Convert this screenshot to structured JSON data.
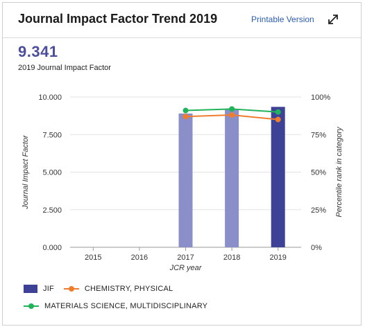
{
  "header": {
    "title": "Journal Impact Factor Trend 2019",
    "printable_label": "Printable Version",
    "expand_icon": "expand-arrows-icon"
  },
  "summary": {
    "value": "9.341",
    "caption": "2019 Journal Impact Factor"
  },
  "colors": {
    "jif_bar_light": "#8b8fc9",
    "jif_bar_dark": "#3d4297",
    "chemistry": "#f07d2d",
    "materials": "#21b35a",
    "grid": "#e3e3e3"
  },
  "legend": {
    "jif": "JIF",
    "chemistry": "CHEMISTRY, PHYSICAL",
    "materials": "MATERIALS SCIENCE, MULTIDISCIPLINARY"
  },
  "chart_data": {
    "type": "bar",
    "xlabel": "JCR year",
    "ylabel": "Journal Impact Factor",
    "y2label": "Percentile rank in category",
    "categories": [
      "2015",
      "2016",
      "2017",
      "2018",
      "2019"
    ],
    "ylim": [
      0,
      10
    ],
    "y2lim": [
      0,
      100
    ],
    "yticks": [
      "0.000",
      "2.500",
      "5.000",
      "7.500",
      "10.000"
    ],
    "y2ticks": [
      "0%",
      "25%",
      "50%",
      "75%",
      "100%"
    ],
    "grid": true,
    "series": [
      {
        "name": "JIF",
        "type": "bar",
        "axis": "left",
        "values": [
          null,
          null,
          8.9,
          9.2,
          9.341
        ]
      },
      {
        "name": "CHEMISTRY, PHYSICAL",
        "type": "line",
        "axis": "right",
        "values": [
          null,
          null,
          87,
          88,
          85
        ]
      },
      {
        "name": "MATERIALS SCIENCE, MULTIDISCIPLINARY",
        "type": "line",
        "axis": "right",
        "values": [
          null,
          null,
          91,
          92,
          90
        ]
      }
    ]
  }
}
